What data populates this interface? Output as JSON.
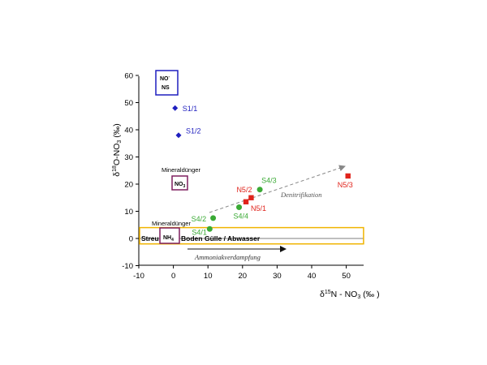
{
  "chart_data": {
    "type": "scatter",
    "xlabel_parts": [
      "δ",
      "15",
      "N - NO",
      "3",
      " (‰ )"
    ],
    "ylabel_parts": [
      "δ",
      "18",
      "O-NO",
      "3",
      " (‰)"
    ],
    "xlim": [
      -10,
      55
    ],
    "ylim": [
      -10,
      65
    ],
    "xticks": [
      "-10",
      "0",
      "10",
      "20",
      "30",
      "40",
      "50"
    ],
    "yticks": [
      "-10",
      "0",
      "10",
      "20",
      "30",
      "40",
      "50",
      "60"
    ],
    "groups": [
      {
        "marker": "diamond",
        "color": "#1f1fbf",
        "points": [
          {
            "x": 0.5,
            "y": 48,
            "label": "S1/1"
          },
          {
            "x": 1.5,
            "y": 38,
            "label": "S1/2"
          }
        ]
      },
      {
        "marker": "circle",
        "color": "#3aaa35",
        "points": [
          {
            "x": 11.5,
            "y": 7.5,
            "label": "S4/2"
          },
          {
            "x": 10.5,
            "y": 3.5,
            "label": "S4/1"
          },
          {
            "x": 19,
            "y": 11.5,
            "label": "S4/4"
          },
          {
            "x": 25,
            "y": 18,
            "label": "S4/3"
          }
        ]
      },
      {
        "marker": "square",
        "color": "#e0231b",
        "points": [
          {
            "x": 21,
            "y": 13.5,
            "label": "N5/1"
          },
          {
            "x": 22.5,
            "y": 15,
            "label": "N5/2"
          },
          {
            "x": 50.5,
            "y": 23,
            "label": "N5/3"
          }
        ]
      }
    ],
    "boxes": [
      {
        "label_lines": [
          "NO",
          "NS"
        ],
        "sub": "3",
        "sup": "-",
        "color": "#1f1fbf"
      },
      {
        "label_lines": [
          "NO"
        ],
        "sub": "3",
        "caption": "Mineraldünger",
        "color": "#7f1f5f"
      },
      {
        "label_lines": [
          "NH"
        ],
        "sub": "4",
        "caption": "Mineraldünger",
        "color": "#7f1f5f"
      }
    ],
    "band": {
      "y_range": [
        -2,
        4
      ],
      "color": "#f0b400",
      "labels": [
        "Streu",
        "Boden",
        "Gülle / Abwasser"
      ]
    },
    "annotations": [
      {
        "text": "Denitrifikation",
        "color": "#555555"
      },
      {
        "text": "Ammoniakverdampfung",
        "color": "#333333"
      }
    ]
  }
}
